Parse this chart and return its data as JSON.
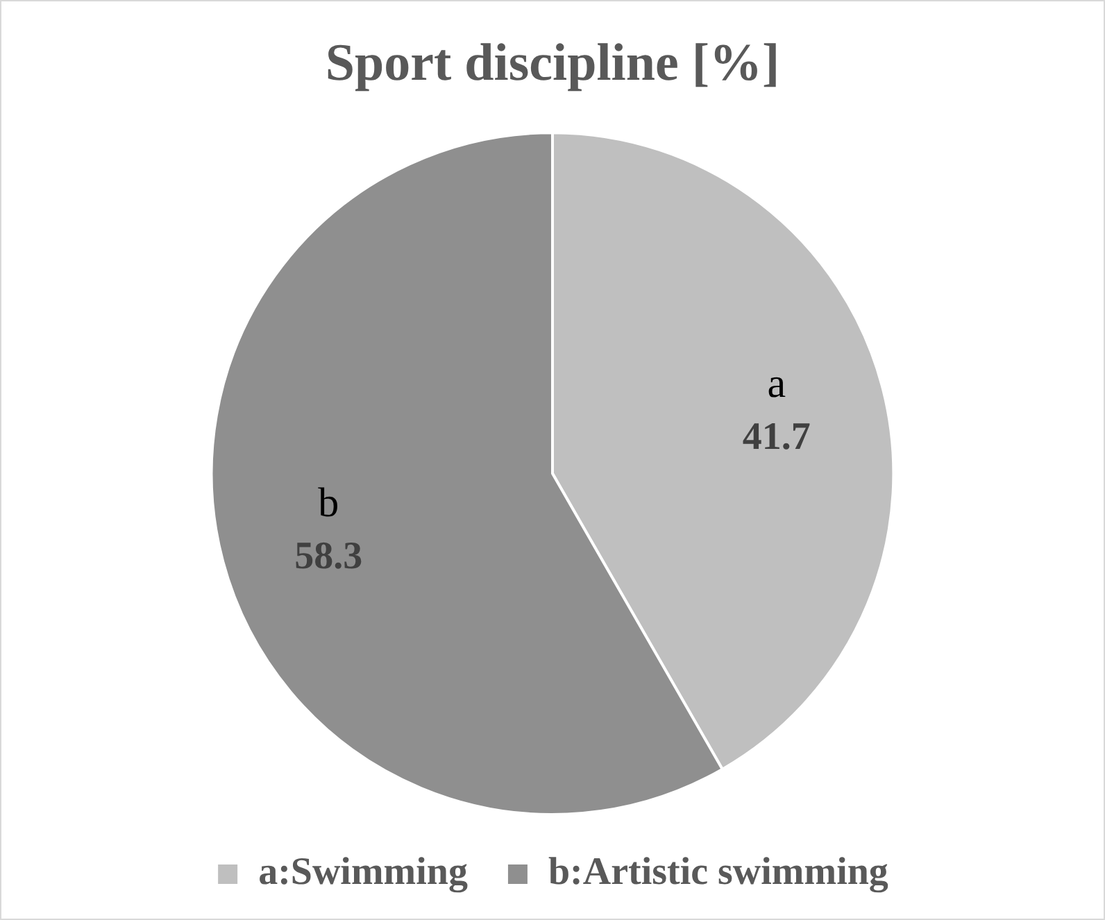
{
  "chart_data": {
    "type": "pie",
    "title": "Sport discipline [%]",
    "categories": [
      "a:Swimming",
      "b:Artistic swimming"
    ],
    "values": [
      41.7,
      58.3
    ],
    "colors": [
      "#bfbfbf",
      "#8f8f8f"
    ],
    "data_labels": true,
    "annotations": [
      {
        "text": "a",
        "x": "a:Swimming"
      },
      {
        "text": "b",
        "x": "b:Artistic swimming"
      }
    ],
    "legend": "bottom"
  }
}
